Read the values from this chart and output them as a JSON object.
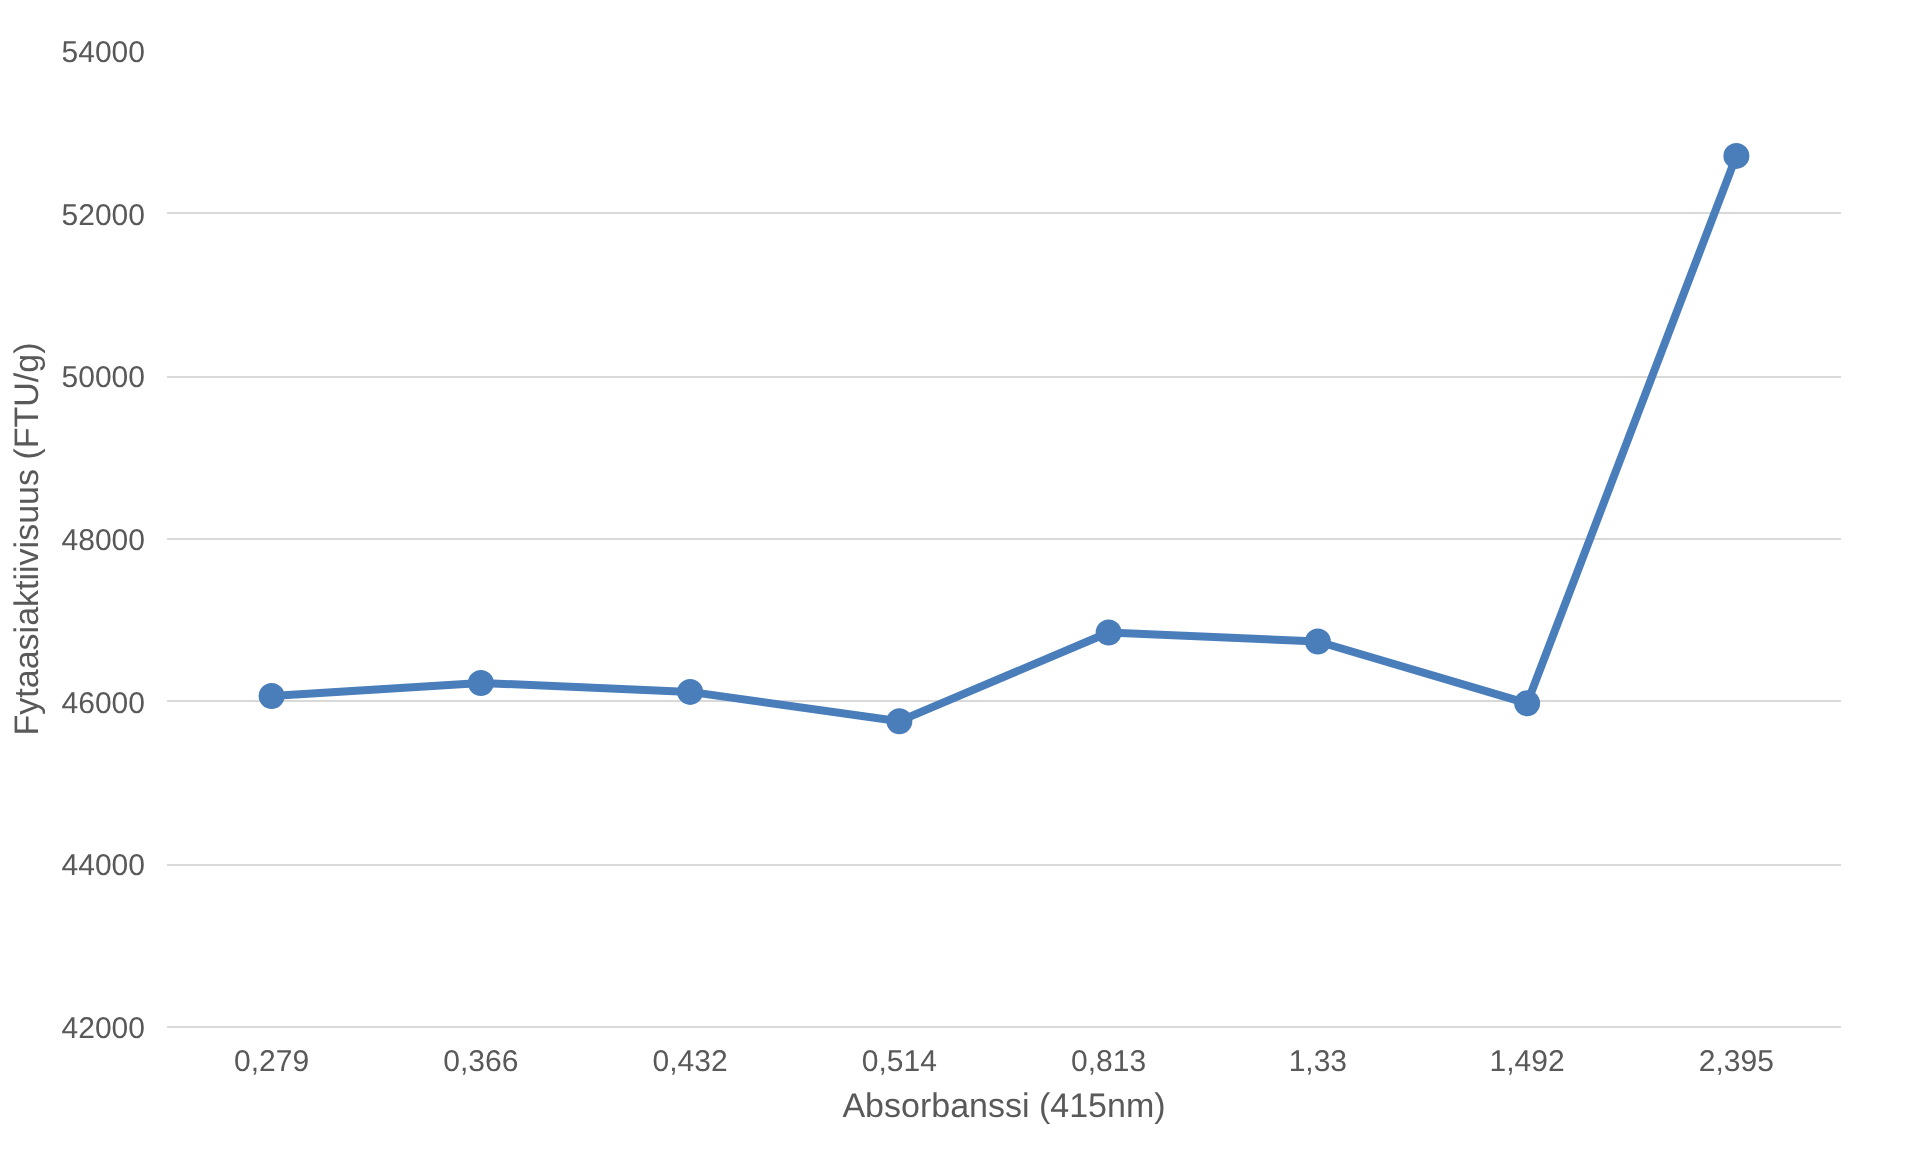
{
  "chart_data": {
    "type": "line",
    "xlabel": "Absorbanssi (415nm)",
    "ylabel": "Fytaasiaktiivisuus (FTU/g)",
    "categories": [
      "0,279",
      "0,366",
      "0,432",
      "0,514",
      "0,813",
      "1,33",
      "1,492",
      "2,395"
    ],
    "series": [
      {
        "color": "#4a7ebb",
        "values": [
          46070,
          46230,
          46120,
          45760,
          46850,
          46740,
          45980,
          52710
        ]
      }
    ],
    "ylim": [
      42000,
      54000
    ],
    "yticks": [
      42000,
      44000,
      46000,
      48000,
      50000,
      52000,
      54000
    ],
    "grid": "y",
    "marker": "circle",
    "line_style": "solid"
  }
}
